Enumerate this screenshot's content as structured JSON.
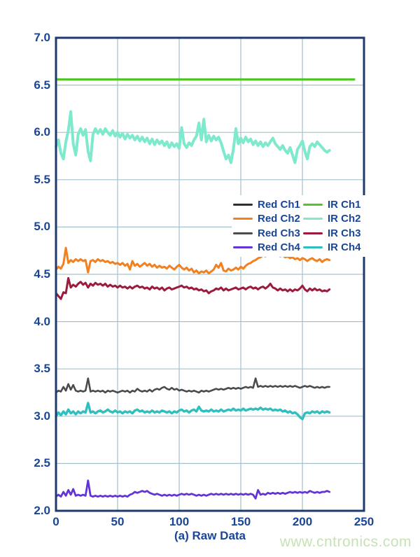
{
  "figure": {
    "watermark": "www.cntronics.com"
  },
  "chart_data": {
    "type": "line",
    "title": "",
    "xlabel": "(a) Raw Data",
    "ylabel": "",
    "xlim": [
      0,
      250
    ],
    "ylim": [
      2.0,
      7.0
    ],
    "x_tick_labels": [
      "0",
      "50",
      "100",
      "150",
      "200",
      "250"
    ],
    "y_tick_labels": [
      "2.0",
      "2.5",
      "3.0",
      "3.5",
      "4.0",
      "4.5",
      "5.0",
      "5.5",
      "6.0",
      "6.5",
      "7.0"
    ],
    "grid": true,
    "legend_position": "center-right",
    "styles": {
      "frame_color": "#1E3A6E",
      "grid_color": "#A3C2CC",
      "text_color": "#1A4696",
      "watermark_color": "#C7E3B6",
      "background": "#ffffff"
    },
    "series": [
      {
        "name": "Red Ch1",
        "color": "#2E2E2E",
        "width": 2.4,
        "x0": 0,
        "dx": 2,
        "y": [
          3.25,
          3.27,
          3.26,
          3.31,
          3.27,
          3.34,
          3.28,
          3.33,
          3.27,
          3.26,
          3.27,
          3.26,
          3.27,
          3.4,
          3.26,
          3.27,
          3.26,
          3.27,
          3.26,
          3.27,
          3.25,
          3.27,
          3.26,
          3.27,
          3.26,
          3.25,
          3.26,
          3.27,
          3.26,
          3.27,
          3.25,
          3.27,
          3.26,
          3.29,
          3.27,
          3.26,
          3.27,
          3.26,
          3.28,
          3.26,
          3.28,
          3.29,
          3.28,
          3.3,
          3.31,
          3.29,
          3.28,
          3.3,
          3.28,
          3.29,
          3.27,
          3.28,
          3.27,
          3.26,
          3.27,
          3.26,
          3.27,
          3.26,
          3.25,
          3.27,
          3.26,
          3.27,
          3.26,
          3.27,
          3.28,
          3.29,
          3.28,
          3.29,
          3.28,
          3.29,
          3.3,
          3.29,
          3.3,
          3.29,
          3.3,
          3.29,
          3.3,
          3.31,
          3.3,
          3.31,
          3.3,
          3.4,
          3.31,
          3.32,
          3.31,
          3.32,
          3.31,
          3.32,
          3.31,
          3.32,
          3.31,
          3.32,
          3.31,
          3.32,
          3.31,
          3.32,
          3.31,
          3.32,
          3.31,
          3.3,
          3.31,
          3.32,
          3.31,
          3.32,
          3.31,
          3.3,
          3.31,
          3.3,
          3.31,
          3.3,
          3.31,
          3.31
        ]
      },
      {
        "name": "Red Ch2",
        "color": "#F2801E",
        "width": 3,
        "x0": 0,
        "dx": 2,
        "y": [
          4.55,
          4.58,
          4.56,
          4.61,
          4.78,
          4.62,
          4.65,
          4.63,
          4.66,
          4.64,
          4.66,
          4.64,
          4.65,
          4.52,
          4.64,
          4.65,
          4.63,
          4.66,
          4.64,
          4.65,
          4.63,
          4.64,
          4.62,
          4.63,
          4.61,
          4.62,
          4.6,
          4.62,
          4.59,
          4.61,
          4.55,
          4.64,
          4.59,
          4.61,
          4.58,
          4.6,
          4.62,
          4.59,
          4.61,
          4.58,
          4.6,
          4.57,
          4.59,
          4.57,
          4.58,
          4.56,
          4.59,
          4.57,
          4.55,
          4.58,
          4.6,
          4.57,
          4.55,
          4.57,
          4.54,
          4.56,
          4.52,
          4.54,
          4.51,
          4.53,
          4.52,
          4.54,
          4.51,
          4.53,
          4.55,
          4.6,
          4.57,
          4.62,
          4.54,
          4.53,
          4.56,
          4.54,
          4.55,
          4.57,
          4.55,
          4.58,
          4.56,
          4.59,
          4.61,
          4.62,
          4.64,
          4.65,
          4.67,
          4.68,
          4.7,
          4.69,
          4.71,
          4.7,
          4.72,
          4.7,
          4.71,
          4.69,
          4.7,
          4.68,
          4.69,
          4.67,
          4.68,
          4.66,
          4.67,
          4.65,
          4.67,
          4.66,
          4.64,
          4.66,
          4.67,
          4.65,
          4.64,
          4.66,
          4.63,
          4.65,
          4.66,
          4.65
        ]
      },
      {
        "name": "Red Ch3",
        "color": "#4B4B4D",
        "width": 2.4,
        "x0": 0,
        "dx": 2,
        "y": [
          3.25,
          3.27,
          3.26,
          3.31,
          3.27,
          3.34,
          3.28,
          3.33,
          3.27,
          3.26,
          3.27,
          3.26,
          3.27,
          3.4,
          3.26,
          3.27,
          3.26,
          3.27,
          3.26,
          3.27,
          3.25,
          3.27,
          3.26,
          3.27,
          3.26,
          3.25,
          3.26,
          3.27,
          3.26,
          3.27,
          3.25,
          3.27,
          3.26,
          3.29,
          3.27,
          3.26,
          3.27,
          3.26,
          3.28,
          3.26,
          3.28,
          3.29,
          3.28,
          3.3,
          3.31,
          3.29,
          3.28,
          3.3,
          3.28,
          3.29,
          3.27,
          3.28,
          3.27,
          3.26,
          3.27,
          3.26,
          3.27,
          3.26,
          3.25,
          3.27,
          3.26,
          3.27,
          3.26,
          3.27,
          3.28,
          3.29,
          3.28,
          3.29,
          3.28,
          3.29,
          3.3,
          3.29,
          3.3,
          3.29,
          3.3,
          3.29,
          3.3,
          3.31,
          3.3,
          3.31,
          3.3,
          3.4,
          3.31,
          3.32,
          3.31,
          3.32,
          3.31,
          3.32,
          3.31,
          3.32,
          3.31,
          3.32,
          3.31,
          3.32,
          3.31,
          3.32,
          3.31,
          3.32,
          3.31,
          3.3,
          3.31,
          3.32,
          3.31,
          3.32,
          3.31,
          3.3,
          3.31,
          3.3,
          3.31,
          3.3,
          3.31,
          3.31
        ]
      },
      {
        "name": "Red Ch4",
        "color": "#6234D6",
        "width": 2.8,
        "x0": 0,
        "dx": 2,
        "y": [
          2.15,
          2.17,
          2.15,
          2.2,
          2.16,
          2.22,
          2.17,
          2.23,
          2.16,
          2.17,
          2.16,
          2.17,
          2.16,
          2.32,
          2.16,
          2.15,
          2.16,
          2.15,
          2.16,
          2.15,
          2.16,
          2.15,
          2.16,
          2.15,
          2.16,
          2.15,
          2.16,
          2.15,
          2.16,
          2.15,
          2.17,
          2.18,
          2.2,
          2.19,
          2.2,
          2.21,
          2.2,
          2.21,
          2.19,
          2.18,
          2.17,
          2.18,
          2.17,
          2.16,
          2.17,
          2.16,
          2.17,
          2.16,
          2.17,
          2.16,
          2.17,
          2.18,
          2.17,
          2.18,
          2.17,
          2.18,
          2.17,
          2.16,
          2.17,
          2.16,
          2.17,
          2.16,
          2.17,
          2.18,
          2.17,
          2.18,
          2.17,
          2.18,
          2.17,
          2.18,
          2.17,
          2.18,
          2.17,
          2.18,
          2.17,
          2.18,
          2.17,
          2.18,
          2.17,
          2.18,
          2.17,
          2.13,
          2.22,
          2.17,
          2.18,
          2.17,
          2.19,
          2.18,
          2.19,
          2.18,
          2.19,
          2.18,
          2.19,
          2.18,
          2.19,
          2.2,
          2.19,
          2.2,
          2.19,
          2.2,
          2.19,
          2.2,
          2.19,
          2.21,
          2.2,
          2.19,
          2.2,
          2.19,
          2.2,
          2.2,
          2.21,
          2.2
        ]
      },
      {
        "name": "IR Ch1",
        "color": "#55C42B",
        "width": 3.2,
        "x0": 0,
        "dx": 242,
        "y": [
          6.56,
          6.56
        ]
      },
      {
        "name": "IR Ch2",
        "color": "#7FE9CE",
        "width": 4,
        "x0": 0,
        "dx": 2,
        "y": [
          5.85,
          5.92,
          5.78,
          5.72,
          5.9,
          6.02,
          6.22,
          5.88,
          5.76,
          5.98,
          6.04,
          5.97,
          6.03,
          5.8,
          5.7,
          5.98,
          6.04,
          5.99,
          6.03,
          5.98,
          6.04,
          6.0,
          5.97,
          6.02,
          5.96,
          6.0,
          5.95,
          5.99,
          5.93,
          5.98,
          5.94,
          5.97,
          5.92,
          5.96,
          5.91,
          5.95,
          5.9,
          5.94,
          5.88,
          5.93,
          5.87,
          5.92,
          5.88,
          5.91,
          5.86,
          5.9,
          5.84,
          5.89,
          5.85,
          5.88,
          5.83,
          6.05,
          5.88,
          5.84,
          5.89,
          5.86,
          5.92,
          5.96,
          6.1,
          5.92,
          6.14,
          5.9,
          5.97,
          5.91,
          5.96,
          5.92,
          5.95,
          5.89,
          5.8,
          5.72,
          5.76,
          5.68,
          5.82,
          6.04,
          5.88,
          5.94,
          5.89,
          5.95,
          5.9,
          5.93,
          5.87,
          5.91,
          5.86,
          5.9,
          5.85,
          5.89,
          5.86,
          5.9,
          5.94,
          5.88,
          5.85,
          5.82,
          5.86,
          5.81,
          5.78,
          5.84,
          5.76,
          5.68,
          5.82,
          5.86,
          5.91,
          5.8,
          5.72,
          5.85,
          5.88,
          5.85,
          5.9,
          5.87,
          5.84,
          5.81,
          5.79,
          5.81
        ]
      },
      {
        "name": "IR Ch3",
        "color": "#9C1B3D",
        "width": 3,
        "x0": 0,
        "dx": 2,
        "y": [
          4.3,
          4.27,
          4.24,
          4.31,
          4.3,
          4.46,
          4.36,
          4.39,
          4.37,
          4.4,
          4.42,
          4.39,
          4.41,
          4.36,
          4.4,
          4.38,
          4.41,
          4.39,
          4.4,
          4.38,
          4.4,
          4.37,
          4.39,
          4.37,
          4.38,
          4.36,
          4.38,
          4.36,
          4.37,
          4.35,
          4.37,
          4.35,
          4.37,
          4.38,
          4.36,
          4.37,
          4.35,
          4.36,
          4.34,
          4.37,
          4.35,
          4.36,
          4.34,
          4.36,
          4.33,
          4.35,
          4.36,
          4.34,
          4.35,
          4.36,
          4.37,
          4.38,
          4.36,
          4.37,
          4.35,
          4.36,
          4.34,
          4.35,
          4.33,
          4.34,
          4.32,
          4.33,
          4.3,
          4.32,
          4.33,
          4.35,
          4.34,
          4.36,
          4.33,
          4.35,
          4.33,
          4.34,
          4.35,
          4.36,
          4.34,
          4.35,
          4.36,
          4.34,
          4.36,
          4.37,
          4.35,
          4.36,
          4.34,
          4.36,
          4.37,
          4.35,
          4.37,
          4.4,
          4.36,
          4.35,
          4.33,
          4.35,
          4.33,
          4.34,
          4.32,
          4.34,
          4.32,
          4.34,
          4.33,
          4.35,
          4.38,
          4.34,
          4.32,
          4.35,
          4.33,
          4.35,
          4.33,
          4.34,
          4.32,
          4.33,
          4.32,
          4.34
        ]
      },
      {
        "name": "IR Ch4",
        "color": "#30BEBE",
        "width": 3.4,
        "x0": 0,
        "dx": 2,
        "y": [
          3.0,
          3.04,
          3.01,
          3.05,
          3.02,
          3.07,
          3.03,
          3.05,
          3.02,
          3.05,
          3.03,
          3.05,
          3.04,
          3.14,
          3.04,
          3.05,
          3.03,
          3.05,
          3.06,
          3.04,
          3.05,
          3.07,
          3.05,
          3.04,
          3.06,
          3.04,
          3.05,
          3.03,
          3.05,
          3.04,
          3.05,
          3.03,
          3.06,
          3.07,
          3.05,
          3.06,
          3.04,
          3.05,
          3.04,
          3.06,
          3.04,
          3.05,
          3.04,
          3.06,
          3.05,
          3.04,
          3.05,
          3.03,
          3.05,
          3.04,
          3.06,
          3.07,
          3.05,
          3.06,
          3.04,
          3.06,
          3.07,
          3.05,
          3.1,
          3.06,
          3.05,
          3.06,
          3.05,
          3.07,
          3.05,
          3.06,
          3.05,
          3.07,
          3.05,
          3.06,
          3.07,
          3.06,
          3.08,
          3.06,
          3.07,
          3.06,
          3.08,
          3.06,
          3.07,
          3.08,
          3.07,
          3.08,
          3.07,
          3.09,
          3.07,
          3.08,
          3.07,
          3.08,
          3.06,
          3.07,
          3.06,
          3.07,
          3.05,
          3.06,
          3.04,
          3.05,
          3.03,
          3.04,
          3.02,
          2.99,
          2.97,
          3.03,
          3.04,
          3.03,
          3.05,
          3.04,
          3.05,
          3.03,
          3.05,
          3.04,
          3.05,
          3.04
        ]
      }
    ]
  }
}
